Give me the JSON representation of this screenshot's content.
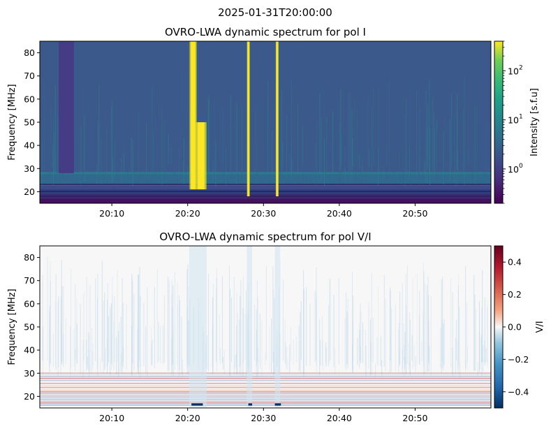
{
  "figure": {
    "suptitle": "2025-01-31T20:00:00"
  },
  "chart_data": [
    {
      "type": "heatmap",
      "title": "OVRO-LWA dynamic spectrum for pol I",
      "xlabel": "",
      "ylabel": "Frequency [MHz]",
      "x_ticks": [
        "20:10",
        "20:20",
        "20:30",
        "20:40",
        "20:50"
      ],
      "x_tick_minutes": [
        10,
        20,
        30,
        40,
        50
      ],
      "x_range_minutes": [
        0.5,
        60
      ],
      "y_ticks": [
        20,
        30,
        40,
        50,
        60,
        70,
        80
      ],
      "ylim": [
        15,
        85
      ],
      "colormap": "viridis",
      "colorbar": {
        "label": "Intensity [s.f.u]",
        "scale": "log",
        "range": [
          0.2,
          400
        ],
        "ticks": [
          1,
          10,
          100
        ],
        "tick_labels": [
          "10",
          "10",
          "10"
        ],
        "tick_exponents": [
          "0",
          "1",
          "2"
        ]
      },
      "features": [
        {
          "name": "bright burst",
          "t_start": 20.2,
          "t_end": 21.2,
          "f_low": 21,
          "f_high": 85,
          "intensity": "high"
        },
        {
          "name": "burst drift tail",
          "t_start": 21.0,
          "t_end": 22.5,
          "f_low": 21,
          "f_high": 50,
          "intensity": "high"
        },
        {
          "name": "narrow burst",
          "t_start": 27.8,
          "t_end": 28.2,
          "f_low": 18,
          "f_high": 85,
          "intensity": "high"
        },
        {
          "name": "narrow burst",
          "t_start": 31.6,
          "t_end": 32.0,
          "f_low": 18,
          "f_high": 85,
          "intensity": "high"
        },
        {
          "name": "flagged block",
          "t_start": 3.0,
          "t_end": 5.0,
          "f_low": 28,
          "f_high": 85,
          "intensity": "low"
        }
      ]
    },
    {
      "type": "heatmap",
      "title": "OVRO-LWA dynamic spectrum for pol V/I",
      "xlabel": "",
      "ylabel": "Frequency [MHz]",
      "x_ticks": [
        "20:10",
        "20:20",
        "20:30",
        "20:40",
        "20:50"
      ],
      "x_tick_minutes": [
        10,
        20,
        30,
        40,
        50
      ],
      "x_range_minutes": [
        0.5,
        60
      ],
      "y_ticks": [
        20,
        30,
        40,
        50,
        60,
        70,
        80
      ],
      "ylim": [
        15,
        85
      ],
      "colormap": "RdBu_r",
      "colorbar": {
        "label": "V/I",
        "scale": "linear",
        "range": [
          -0.5,
          0.5
        ],
        "ticks": [
          0.4,
          0.2,
          0.0,
          -0.2,
          -0.4
        ],
        "tick_labels": [
          "0.4",
          "0.2",
          "0.0",
          "−0.2",
          "−0.4"
        ]
      },
      "features": [
        {
          "name": "negative band",
          "t_start": 20.5,
          "t_end": 22.0,
          "f_low": 16,
          "f_high": 17,
          "value": -0.45
        },
        {
          "name": "negative band",
          "t_start": 28.0,
          "t_end": 28.5,
          "f_low": 16,
          "f_high": 17,
          "value": -0.45
        },
        {
          "name": "negative band",
          "t_start": 31.5,
          "t_end": 32.3,
          "f_low": 16,
          "f_high": 17,
          "value": -0.45
        }
      ]
    }
  ],
  "colors": {
    "viridis_background": "#3b5a8b",
    "viridis_bright": "#fde725",
    "rdbu_neutral": "#f7f7f7",
    "rdbu_neg": "#053061",
    "rdbu_pos": "#67001f"
  }
}
